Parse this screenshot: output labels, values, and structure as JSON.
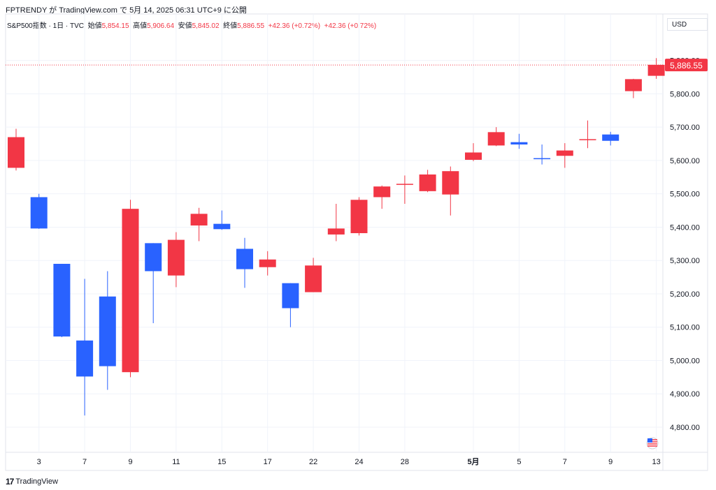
{
  "header": {
    "attribution": "FPTRENDY が TradingView.com で 5月 14, 2025 06:31 UTC+9 に公開"
  },
  "legend": {
    "symbol": "S&P500指数 · 1日 · TVC",
    "open_label": "始値",
    "open": "5,854.15",
    "high_label": "高値",
    "high": "5,906.64",
    "low_label": "安値",
    "low": "5,845.02",
    "close_label": "終値",
    "close": "5,886.55",
    "change": "+42.36 (+0.72%)",
    "change2": "+42.36 (+0.72%)"
  },
  "currency": "USD",
  "last_price_label": "5,886.55",
  "footer": {
    "brand": "TradingView",
    "logo_glyph": "17"
  },
  "colors": {
    "up": "#f23645",
    "down": "#2962ff",
    "grid": "#f0f3fa",
    "axis_text": "#131722"
  },
  "chart_data": {
    "type": "candlestick",
    "ylim": [
      4730,
      5960
    ],
    "y_ticks": [
      4800,
      4900,
      5000,
      5100,
      5200,
      5300,
      5400,
      5500,
      5600,
      5700,
      5800,
      5900
    ],
    "y_tick_labels": [
      "4,800.00",
      "4,900.00",
      "5,000.00",
      "5,100.00",
      "5,200.00",
      "5,300.00",
      "5,400.00",
      "5,500.00",
      "5,600.00",
      "5,700.00",
      "5,800.00",
      "5,900.00"
    ],
    "x_tick_labels": [
      {
        "label": "3",
        "index": 1
      },
      {
        "label": "7",
        "index": 3
      },
      {
        "label": "9",
        "index": 5
      },
      {
        "label": "11",
        "index": 7
      },
      {
        "label": "15",
        "index": 9
      },
      {
        "label": "17",
        "index": 11
      },
      {
        "label": "22",
        "index": 13
      },
      {
        "label": "24",
        "index": 15
      },
      {
        "label": "28",
        "index": 17
      },
      {
        "label": "5月",
        "index": 20
      },
      {
        "label": "5",
        "index": 22
      },
      {
        "label": "7",
        "index": 24
      },
      {
        "label": "9",
        "index": 26
      },
      {
        "label": "13",
        "index": 28
      }
    ],
    "last_price": 5886.55,
    "candles": [
      {
        "o": 5578,
        "h": 5695,
        "l": 5570,
        "c": 5670
      },
      {
        "o": 5490,
        "h": 5500,
        "l": 5395,
        "c": 5396
      },
      {
        "o": 5290,
        "h": 5290,
        "l": 5070,
        "c": 5072
      },
      {
        "o": 5060,
        "h": 5245,
        "l": 4835,
        "c": 4952
      },
      {
        "o": 5192,
        "h": 5268,
        "l": 4912,
        "c": 4983
      },
      {
        "o": 4965,
        "h": 5482,
        "l": 4950,
        "c": 5455
      },
      {
        "o": 5352,
        "h": 5352,
        "l": 5112,
        "c": 5268
      },
      {
        "o": 5255,
        "h": 5385,
        "l": 5220,
        "c": 5362
      },
      {
        "o": 5405,
        "h": 5458,
        "l": 5358,
        "c": 5440
      },
      {
        "o": 5410,
        "h": 5450,
        "l": 5392,
        "c": 5394
      },
      {
        "o": 5335,
        "h": 5368,
        "l": 5218,
        "c": 5274
      },
      {
        "o": 5280,
        "h": 5328,
        "l": 5255,
        "c": 5303
      },
      {
        "o": 5232,
        "h": 5232,
        "l": 5100,
        "c": 5157
      },
      {
        "o": 5205,
        "h": 5308,
        "l": 5205,
        "c": 5285
      },
      {
        "o": 5378,
        "h": 5470,
        "l": 5358,
        "c": 5396
      },
      {
        "o": 5382,
        "h": 5490,
        "l": 5375,
        "c": 5482
      },
      {
        "o": 5490,
        "h": 5525,
        "l": 5455,
        "c": 5522
      },
      {
        "o": 5528,
        "h": 5555,
        "l": 5470,
        "c": 5530
      },
      {
        "o": 5508,
        "h": 5572,
        "l": 5505,
        "c": 5558
      },
      {
        "o": 5498,
        "h": 5582,
        "l": 5435,
        "c": 5568
      },
      {
        "o": 5602,
        "h": 5652,
        "l": 5598,
        "c": 5624
      },
      {
        "o": 5645,
        "h": 5700,
        "l": 5643,
        "c": 5685
      },
      {
        "o": 5655,
        "h": 5680,
        "l": 5635,
        "c": 5648
      },
      {
        "o": 5607,
        "h": 5648,
        "l": 5588,
        "c": 5604
      },
      {
        "o": 5614,
        "h": 5652,
        "l": 5578,
        "c": 5630
      },
      {
        "o": 5663,
        "h": 5720,
        "l": 5637,
        "c": 5664
      },
      {
        "o": 5678,
        "h": 5686,
        "l": 5645,
        "c": 5659
      },
      {
        "o": 5808,
        "h": 5845,
        "l": 5787,
        "c": 5844
      },
      {
        "o": 5854,
        "h": 5907,
        "l": 5845,
        "c": 5887
      }
    ]
  }
}
